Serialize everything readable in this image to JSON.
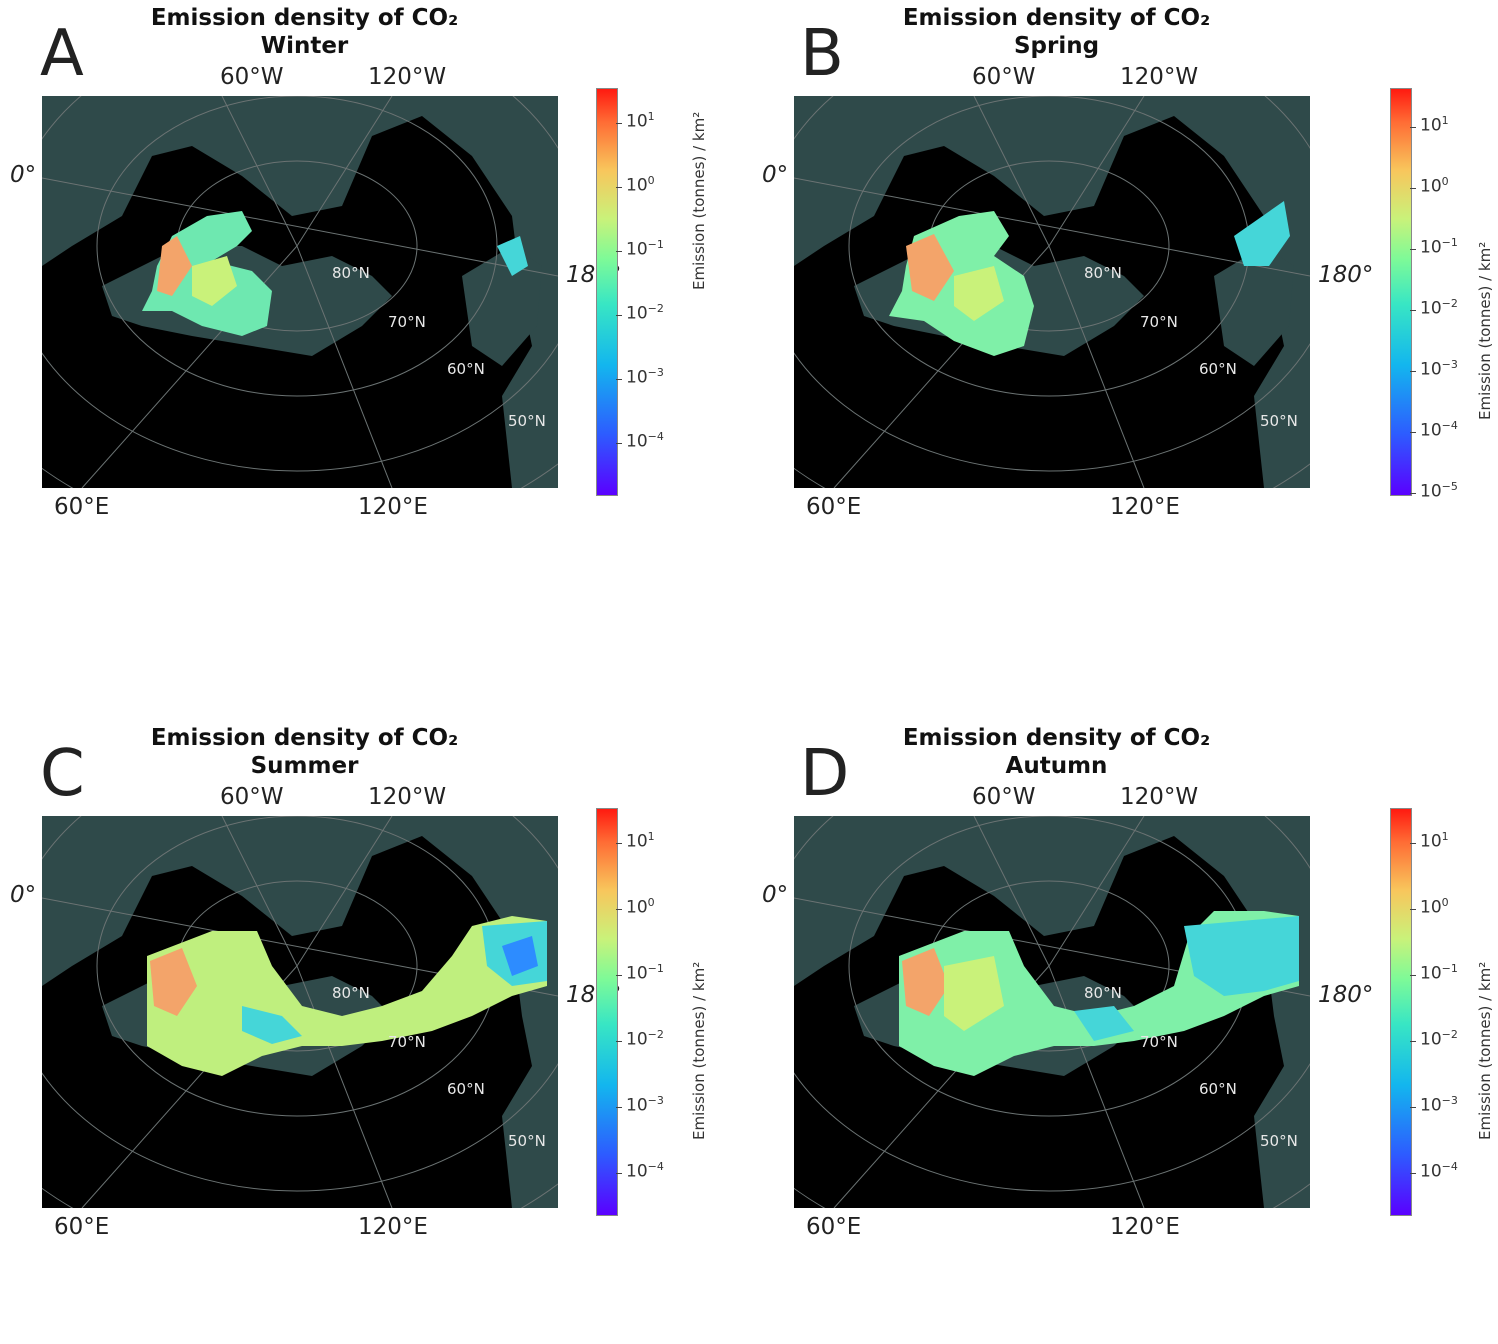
{
  "colors": {
    "ocean": "#2f4a4a",
    "land": "#000000",
    "grid": "#6b7373"
  },
  "colorbar_label": "Emission (tonnes) / km²",
  "lon_labels": {
    "w60": "60°W",
    "w120": "120°W",
    "e60": "60°E",
    "e120": "120°E",
    "lon0": "0°",
    "lon180": "180°"
  },
  "lat_labels": {
    "n80": "80°N",
    "n70": "70°N",
    "n60": "60°N",
    "n50": "50°N"
  },
  "panels": [
    {
      "letter": "A",
      "title": "Emission density of CO₂",
      "season": "Winter",
      "ticks": [
        {
          "base": "10",
          "exp": "1"
        },
        {
          "base": "10",
          "exp": "0"
        },
        {
          "base": "10",
          "exp": "−1"
        },
        {
          "base": "10",
          "exp": "−2"
        },
        {
          "base": "10",
          "exp": "−3"
        },
        {
          "base": "10",
          "exp": "−4"
        }
      ]
    },
    {
      "letter": "B",
      "title": "Emission density of CO₂",
      "season": "Spring",
      "ticks": [
        {
          "base": "10",
          "exp": "1"
        },
        {
          "base": "10",
          "exp": "0"
        },
        {
          "base": "10",
          "exp": "−1"
        },
        {
          "base": "10",
          "exp": "−2"
        },
        {
          "base": "10",
          "exp": "−3"
        },
        {
          "base": "10",
          "exp": "−4"
        },
        {
          "base": "10",
          "exp": "−5"
        }
      ]
    },
    {
      "letter": "C",
      "title": "Emission density of CO₂",
      "season": "Summer",
      "ticks": [
        {
          "base": "10",
          "exp": "1"
        },
        {
          "base": "10",
          "exp": "0"
        },
        {
          "base": "10",
          "exp": "−1"
        },
        {
          "base": "10",
          "exp": "−2"
        },
        {
          "base": "10",
          "exp": "−3"
        },
        {
          "base": "10",
          "exp": "−4"
        }
      ]
    },
    {
      "letter": "D",
      "title": "Emission density of CO₂",
      "season": "Autumn",
      "ticks": [
        {
          "base": "10",
          "exp": "1"
        },
        {
          "base": "10",
          "exp": "0"
        },
        {
          "base": "10",
          "exp": "−1"
        },
        {
          "base": "10",
          "exp": "−2"
        },
        {
          "base": "10",
          "exp": "−3"
        },
        {
          "base": "10",
          "exp": "−4"
        }
      ]
    }
  ]
}
